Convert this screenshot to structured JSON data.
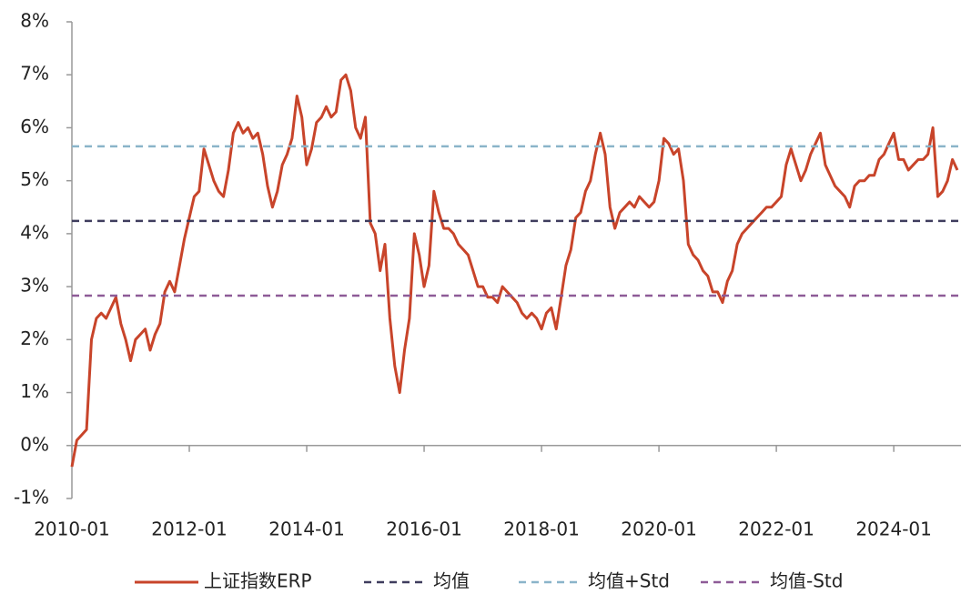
{
  "chart_data": {
    "type": "line",
    "x": [
      "2010-01",
      "2010-02",
      "2010-03",
      "2010-04",
      "2010-05",
      "2010-06",
      "2010-07",
      "2010-08",
      "2010-09",
      "2010-10",
      "2010-11",
      "2010-12",
      "2011-01",
      "2011-02",
      "2011-03",
      "2011-04",
      "2011-05",
      "2011-06",
      "2011-07",
      "2011-08",
      "2011-09",
      "2011-10",
      "2011-11",
      "2011-12",
      "2012-01",
      "2012-02",
      "2012-03",
      "2012-04",
      "2012-05",
      "2012-06",
      "2012-07",
      "2012-08",
      "2012-09",
      "2012-10",
      "2012-11",
      "2012-12",
      "2013-01",
      "2013-02",
      "2013-03",
      "2013-04",
      "2013-05",
      "2013-06",
      "2013-07",
      "2013-08",
      "2013-09",
      "2013-10",
      "2013-11",
      "2013-12",
      "2014-01",
      "2014-02",
      "2014-03",
      "2014-04",
      "2014-05",
      "2014-06",
      "2014-07",
      "2014-08",
      "2014-09",
      "2014-10",
      "2014-11",
      "2014-12",
      "2015-01",
      "2015-02",
      "2015-03",
      "2015-04",
      "2015-05",
      "2015-06",
      "2015-07",
      "2015-08",
      "2015-09",
      "2015-10",
      "2015-11",
      "2015-12",
      "2016-01",
      "2016-02",
      "2016-03",
      "2016-04",
      "2016-05",
      "2016-06",
      "2016-07",
      "2016-08",
      "2016-09",
      "2016-10",
      "2016-11",
      "2016-12",
      "2017-01",
      "2017-02",
      "2017-03",
      "2017-04",
      "2017-05",
      "2017-06",
      "2017-07",
      "2017-08",
      "2017-09",
      "2017-10",
      "2017-11",
      "2017-12",
      "2018-01",
      "2018-02",
      "2018-03",
      "2018-04",
      "2018-05",
      "2018-06",
      "2018-07",
      "2018-08",
      "2018-09",
      "2018-10",
      "2018-11",
      "2018-12",
      "2019-01",
      "2019-02",
      "2019-03",
      "2019-04",
      "2019-05",
      "2019-06",
      "2019-07",
      "2019-08",
      "2019-09",
      "2019-10",
      "2019-11",
      "2019-12",
      "2020-01",
      "2020-02",
      "2020-03",
      "2020-04",
      "2020-05",
      "2020-06",
      "2020-07",
      "2020-08",
      "2020-09",
      "2020-10",
      "2020-11",
      "2020-12",
      "2021-01",
      "2021-02",
      "2021-03",
      "2021-04",
      "2021-05",
      "2021-06",
      "2021-07",
      "2021-08",
      "2021-09",
      "2021-10",
      "2021-11",
      "2021-12",
      "2022-01",
      "2022-02",
      "2022-03",
      "2022-04",
      "2022-05",
      "2022-06",
      "2022-07",
      "2022-08",
      "2022-09",
      "2022-10",
      "2022-11",
      "2022-12",
      "2023-01",
      "2023-02",
      "2023-03",
      "2023-04",
      "2023-05",
      "2023-06",
      "2023-07",
      "2023-08",
      "2023-09",
      "2023-10",
      "2023-11",
      "2023-12",
      "2024-01",
      "2024-02",
      "2024-03",
      "2024-04",
      "2024-05",
      "2024-06",
      "2024-07",
      "2024-08",
      "2024-09",
      "2024-10",
      "2024-11",
      "2024-12",
      "2025-01",
      "2025-02"
    ],
    "series": [
      {
        "name": "上证指数ERP",
        "color": "#c8442a",
        "values": [
          -0.4,
          0.1,
          0.2,
          0.3,
          2.0,
          2.4,
          2.5,
          2.4,
          2.6,
          2.8,
          2.3,
          2.0,
          1.6,
          2.0,
          2.1,
          2.2,
          1.8,
          2.1,
          2.3,
          2.9,
          3.1,
          2.9,
          3.4,
          3.9,
          4.3,
          4.7,
          4.8,
          5.6,
          5.3,
          5.0,
          4.8,
          4.7,
          5.2,
          5.9,
          6.1,
          5.9,
          6.0,
          5.8,
          5.9,
          5.5,
          4.9,
          4.5,
          4.8,
          5.3,
          5.5,
          5.8,
          6.6,
          6.2,
          5.3,
          5.6,
          6.1,
          6.2,
          6.4,
          6.2,
          6.3,
          6.9,
          7.0,
          6.7,
          6.0,
          5.8,
          6.2,
          4.2,
          4.0,
          3.3,
          3.8,
          2.4,
          1.5,
          1.0,
          1.8,
          2.4,
          4.0,
          3.6,
          3.0,
          3.4,
          4.8,
          4.4,
          4.1,
          4.1,
          4.0,
          3.8,
          3.7,
          3.6,
          3.3,
          3.0,
          3.0,
          2.8,
          2.8,
          2.7,
          3.0,
          2.9,
          2.8,
          2.7,
          2.5,
          2.4,
          2.5,
          2.4,
          2.2,
          2.5,
          2.6,
          2.2,
          2.8,
          3.4,
          3.7,
          4.3,
          4.4,
          4.8,
          5.0,
          5.5,
          5.9,
          5.5,
          4.5,
          4.1,
          4.4,
          4.5,
          4.6,
          4.5,
          4.7,
          4.6,
          4.5,
          4.6,
          5.0,
          5.8,
          5.7,
          5.5,
          5.6,
          5.0,
          3.8,
          3.6,
          3.5,
          3.3,
          3.2,
          2.9,
          2.9,
          2.7,
          3.1,
          3.3,
          3.8,
          4.0,
          4.1,
          4.2,
          4.3,
          4.4,
          4.5,
          4.5,
          4.6,
          4.7,
          5.3,
          5.6,
          5.3,
          5.0,
          5.2,
          5.5,
          5.7,
          5.9,
          5.3,
          5.1,
          4.9,
          4.8,
          4.7,
          4.5,
          4.9,
          5.0,
          5.0,
          5.1,
          5.1,
          5.4,
          5.5,
          5.7,
          5.9,
          5.4,
          5.4,
          5.2,
          5.3,
          5.4,
          5.4,
          5.5,
          6.0,
          4.7,
          4.8,
          5.0,
          5.4,
          5.2
        ]
      },
      {
        "name": "均值",
        "color": "#3f3d5e",
        "dashed": true,
        "value": 4.24
      },
      {
        "name": "均值+Std",
        "color": "#8ab4c9",
        "dashed": true,
        "value": 5.65
      },
      {
        "name": "均值-Std",
        "color": "#8e5b97",
        "dashed": true,
        "value": 2.83
      }
    ],
    "ylim": [
      -1,
      8
    ],
    "yticks": [
      {
        "value": -1,
        "label": "-1%"
      },
      {
        "value": 0,
        "label": "0%"
      },
      {
        "value": 1,
        "label": "1%"
      },
      {
        "value": 2,
        "label": "2%"
      },
      {
        "value": 3,
        "label": "3%"
      },
      {
        "value": 4,
        "label": "4%"
      },
      {
        "value": 5,
        "label": "5%"
      },
      {
        "value": 6,
        "label": "6%"
      },
      {
        "value": 7,
        "label": "7%"
      },
      {
        "value": 8,
        "label": "8%"
      }
    ],
    "xticks": [
      "2010-01",
      "2012-01",
      "2014-01",
      "2016-01",
      "2018-01",
      "2020-01",
      "2022-01",
      "2024-01"
    ],
    "legend": "bottom"
  }
}
